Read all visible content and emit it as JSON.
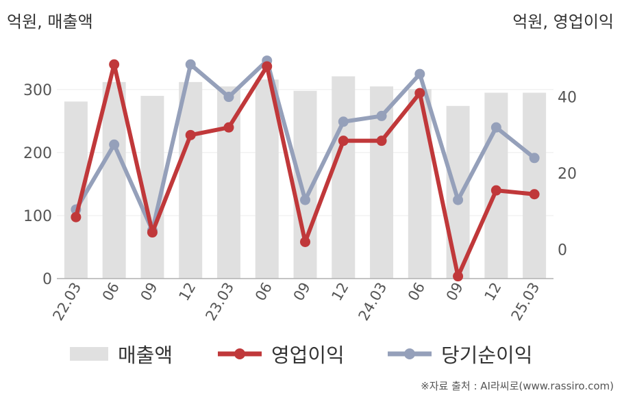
{
  "units": {
    "left": "억원, 매출액",
    "right": "억원, 영업이익"
  },
  "source": "※자료 출처 : AI라씨로(www.rassiro.com)",
  "legend": [
    {
      "label": "매출액",
      "type": "bar"
    },
    {
      "label": "영업이익",
      "type": "line"
    },
    {
      "label": "당기순이익",
      "type": "line"
    }
  ],
  "colors": {
    "bar": "#e0e0e0",
    "operating": "#c0383a",
    "net": "#95a0ba",
    "axis": "#b0b0b0",
    "grid": "#ebebeb"
  },
  "chart_data": {
    "type": "bar+line",
    "categories": [
      "22.03",
      "06",
      "09",
      "12",
      "23.03",
      "06",
      "09",
      "12",
      "24.03",
      "06",
      "09",
      "12",
      "25.03"
    ],
    "y_left": {
      "ticks": [
        0,
        100,
        200,
        300
      ],
      "range": [
        0,
        352
      ]
    },
    "y_right": {
      "ticks": [
        0,
        20,
        40
      ],
      "range": [
        -7.6,
        50.5
      ]
    },
    "series": [
      {
        "name": "매출액",
        "axis": "left",
        "kind": "bar",
        "values": [
          281,
          312,
          290,
          312,
          305,
          316,
          298,
          321,
          305,
          301,
          274,
          295,
          295
        ]
      },
      {
        "name": "영업이익",
        "axis": "right",
        "kind": "line",
        "values": [
          8.5,
          48.5,
          4.5,
          30.0,
          32.0,
          48.0,
          2.0,
          28.5,
          28.5,
          41.0,
          -7.0,
          15.5,
          14.5
        ]
      },
      {
        "name": "당기순이익",
        "axis": "right",
        "kind": "line",
        "values": [
          10.5,
          27.5,
          5.0,
          48.5,
          40.0,
          49.5,
          13.0,
          33.5,
          35.0,
          46.0,
          13.0,
          32.0,
          24.0
        ]
      }
    ]
  }
}
